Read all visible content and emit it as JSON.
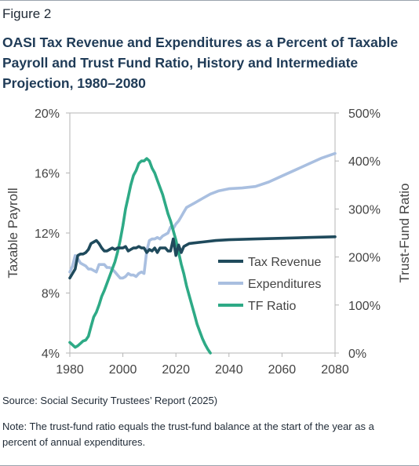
{
  "figure_label": "Figure 2",
  "title": "OASI Tax Revenue and Expenditures as a Percent of Taxable Payroll and Trust Fund Ratio, History and Intermediate Projection, 1980–2080",
  "source": "Source: Social Security Trustees’ Report (2025)",
  "note": "Note: The trust-fund ratio equals the trust-fund balance at the start of the year as a percent of annual expenditures.",
  "colors": {
    "tax_revenue": "#1f4a5c",
    "expenditures": "#a9bfe0",
    "tf_ratio": "#2eaa86",
    "frame": "#b5b5b5",
    "text": "#444444"
  },
  "chart_data": {
    "type": "line",
    "xlabel": "",
    "ylabel": "Taxable Payroll",
    "y2label": "Trust-Fund Ratio",
    "xlim": [
      1980,
      2080
    ],
    "ylim": [
      4,
      20
    ],
    "y2lim": [
      0,
      500
    ],
    "x_ticks": [
      "1980",
      "2000",
      "2020",
      "2040",
      "2060",
      "2080"
    ],
    "y_ticks": [
      "4%",
      "8%",
      "12%",
      "16%",
      "20%"
    ],
    "y2_ticks": [
      "0%",
      "100%",
      "200%",
      "300%",
      "400%",
      "500%"
    ],
    "x_tick_values": [
      1980,
      2000,
      2020,
      2040,
      2060,
      2080
    ],
    "y_tick_values": [
      4,
      8,
      12,
      16,
      20
    ],
    "y2_tick_values": [
      0,
      100,
      200,
      300,
      400,
      500
    ],
    "grid": false,
    "legend_position": "center-right",
    "series": [
      {
        "name": "Tax Revenue",
        "axis": "left",
        "color_key": "tax_revenue",
        "x": [
          1980,
          1981,
          1982,
          1983,
          1984,
          1985,
          1986,
          1987,
          1988,
          1989,
          1990,
          1991,
          1992,
          1993,
          1994,
          1995,
          1996,
          1997,
          1998,
          1999,
          2000,
          2001,
          2002,
          2003,
          2004,
          2005,
          2006,
          2007,
          2008,
          2009,
          2010,
          2011,
          2012,
          2013,
          2014,
          2015,
          2016,
          2017,
          2018,
          2019,
          2020,
          2021,
          2022,
          2023,
          2024,
          2025,
          2030,
          2035,
          2040,
          2050,
          2060,
          2070,
          2080
        ],
        "values": [
          9.0,
          9.3,
          9.6,
          10.5,
          10.6,
          10.6,
          10.7,
          10.9,
          11.3,
          11.4,
          11.5,
          11.3,
          11.0,
          10.8,
          10.8,
          10.9,
          11.0,
          10.9,
          11.0,
          11.0,
          11.0,
          11.1,
          10.8,
          10.9,
          11.0,
          11.0,
          11.1,
          11.0,
          11.0,
          10.7,
          10.9,
          10.8,
          11.0,
          10.7,
          11.0,
          11.0,
          11.0,
          10.8,
          10.8,
          11.6,
          10.5,
          11.2,
          10.7,
          11.1,
          11.2,
          11.3,
          11.4,
          11.5,
          11.55,
          11.6,
          11.65,
          11.7,
          11.75
        ]
      },
      {
        "name": "Expenditures",
        "axis": "left",
        "color_key": "expenditures",
        "x": [
          1980,
          1981,
          1982,
          1983,
          1984,
          1985,
          1986,
          1987,
          1988,
          1989,
          1990,
          1991,
          1992,
          1993,
          1994,
          1995,
          1996,
          1997,
          1998,
          1999,
          2000,
          2001,
          2002,
          2003,
          2004,
          2005,
          2006,
          2007,
          2008,
          2009,
          2010,
          2011,
          2012,
          2013,
          2014,
          2015,
          2016,
          2017,
          2018,
          2019,
          2020,
          2021,
          2022,
          2023,
          2024,
          2025,
          2027,
          2030,
          2033,
          2036,
          2040,
          2045,
          2050,
          2055,
          2060,
          2065,
          2070,
          2075,
          2080
        ],
        "values": [
          9.4,
          9.8,
          10.5,
          10.3,
          10.0,
          9.9,
          9.8,
          9.6,
          9.6,
          9.5,
          9.4,
          9.9,
          9.9,
          9.9,
          9.7,
          9.7,
          9.6,
          9.4,
          9.2,
          9.0,
          9.0,
          9.1,
          9.3,
          9.2,
          9.2,
          9.1,
          9.3,
          9.4,
          9.3,
          10.8,
          11.5,
          11.6,
          11.6,
          11.7,
          11.6,
          11.8,
          11.9,
          12.0,
          12.4,
          12.3,
          12.6,
          12.8,
          13.1,
          13.4,
          13.7,
          13.8,
          14.0,
          14.3,
          14.6,
          14.8,
          14.95,
          15.0,
          15.1,
          15.4,
          15.8,
          16.2,
          16.6,
          17.0,
          17.3
        ]
      },
      {
        "name": "TF Ratio",
        "axis": "right",
        "color_key": "tf_ratio",
        "x": [
          1980,
          1981,
          1982,
          1983,
          1984,
          1985,
          1986,
          1987,
          1988,
          1989,
          1990,
          1991,
          1992,
          1993,
          1994,
          1995,
          1996,
          1997,
          1998,
          1999,
          2000,
          2001,
          2002,
          2003,
          2004,
          2005,
          2006,
          2007,
          2008,
          2009,
          2010,
          2011,
          2012,
          2013,
          2014,
          2015,
          2016,
          2017,
          2018,
          2019,
          2020,
          2021,
          2022,
          2023,
          2024,
          2025,
          2026,
          2027,
          2028,
          2029,
          2030,
          2031,
          2032,
          2033
        ],
        "values": [
          22,
          17,
          12,
          15,
          20,
          25,
          27,
          35,
          55,
          75,
          85,
          100,
          118,
          130,
          145,
          160,
          175,
          190,
          210,
          235,
          265,
          300,
          325,
          350,
          370,
          380,
          395,
          400,
          400,
          405,
          400,
          385,
          375,
          360,
          345,
          330,
          310,
          290,
          275,
          255,
          235,
          210,
          185,
          165,
          140,
          120,
          100,
          80,
          60,
          45,
          30,
          18,
          8,
          0
        ]
      }
    ]
  }
}
